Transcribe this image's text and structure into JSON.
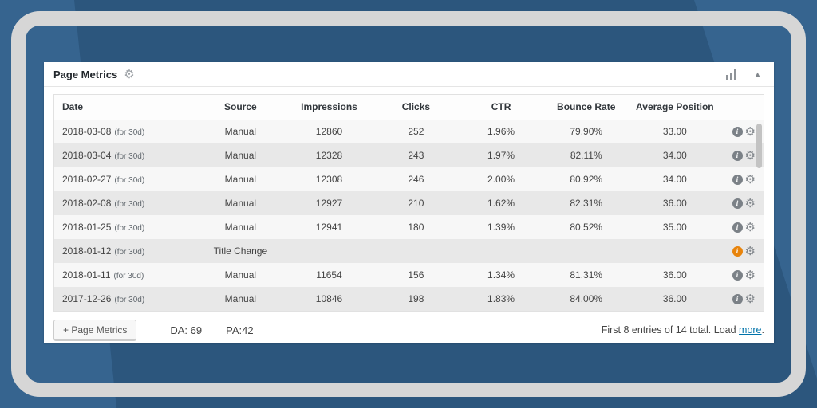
{
  "panel": {
    "title": "Page Metrics",
    "icons": {
      "title_gear": "⚙",
      "collapse_arrow": "▲"
    },
    "table": {
      "headers": [
        "Date",
        "Source",
        "Impressions",
        "Clicks",
        "CTR",
        "Bounce Rate",
        "Average Position",
        ""
      ],
      "rows": [
        {
          "date": "2018-03-08",
          "date_note": "(for 30d)",
          "source": "Manual",
          "impressions": "12860",
          "clicks": "252",
          "ctr": "1.96%",
          "bounce_rate": "79.90%",
          "avg_position": "33.00",
          "info_state": "normal"
        },
        {
          "date": "2018-03-04",
          "date_note": "(for 30d)",
          "source": "Manual",
          "impressions": "12328",
          "clicks": "243",
          "ctr": "1.97%",
          "bounce_rate": "82.11%",
          "avg_position": "34.00",
          "info_state": "normal"
        },
        {
          "date": "2018-02-27",
          "date_note": "(for 30d)",
          "source": "Manual",
          "impressions": "12308",
          "clicks": "246",
          "ctr": "2.00%",
          "bounce_rate": "80.92%",
          "avg_position": "34.00",
          "info_state": "normal"
        },
        {
          "date": "2018-02-08",
          "date_note": "(for 30d)",
          "source": "Manual",
          "impressions": "12927",
          "clicks": "210",
          "ctr": "1.62%",
          "bounce_rate": "82.31%",
          "avg_position": "36.00",
          "info_state": "normal"
        },
        {
          "date": "2018-01-25",
          "date_note": "(for 30d)",
          "source": "Manual",
          "impressions": "12941",
          "clicks": "180",
          "ctr": "1.39%",
          "bounce_rate": "80.52%",
          "avg_position": "35.00",
          "info_state": "normal"
        },
        {
          "date": "2018-01-12",
          "date_note": "(for 30d)",
          "source": "Title Change",
          "impressions": "",
          "clicks": "",
          "ctr": "",
          "bounce_rate": "",
          "avg_position": "",
          "info_state": "alert"
        },
        {
          "date": "2018-01-11",
          "date_note": "(for 30d)",
          "source": "Manual",
          "impressions": "11654",
          "clicks": "156",
          "ctr": "1.34%",
          "bounce_rate": "81.31%",
          "avg_position": "36.00",
          "info_state": "normal"
        },
        {
          "date": "2017-12-26",
          "date_note": "(for 30d)",
          "source": "Manual",
          "impressions": "10846",
          "clicks": "198",
          "ctr": "1.83%",
          "bounce_rate": "84.00%",
          "avg_position": "36.00",
          "info_state": "normal"
        }
      ],
      "row_icons": {
        "info": "i",
        "gear": "⚙"
      }
    },
    "footer": {
      "add_button_label": "+ Page Metrics",
      "da_label": "DA: 69",
      "pa_label": "PA:42",
      "pagination_prefix": "First 8 entries of 14 total. Load ",
      "load_more_label": "more",
      "pagination_suffix": "."
    }
  },
  "colors": {
    "background_blue": "#36648f",
    "background_dark_shape": "#2c567d",
    "frame_grey": "#d6d6d6",
    "row_light": "#f7f7f7",
    "row_dark": "#e8e8e8",
    "link_blue": "#0073aa",
    "alert_orange": "#e8840c"
  }
}
